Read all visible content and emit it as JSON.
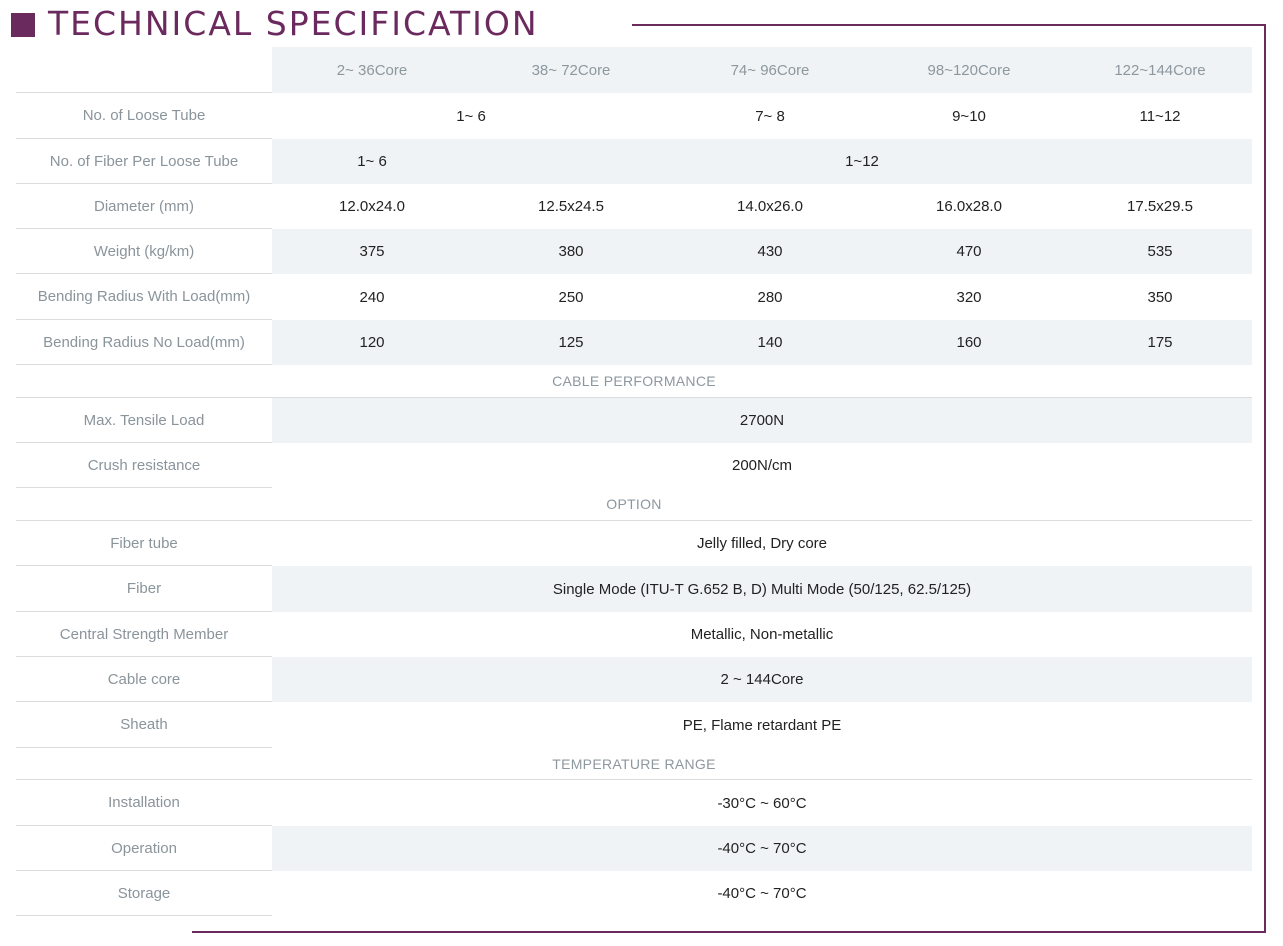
{
  "title": "TECHNICAL SPECIFICATION",
  "brand_color": "#6b2a5e",
  "columns": [
    "2~ 36Core",
    "38~ 72Core",
    "74~ 96Core",
    "98~120Core",
    "122~144Core"
  ],
  "rows": {
    "loose_tube": {
      "label": "No. of Loose Tube",
      "v12": "1~ 6",
      "v3": "7~ 8",
      "v4": "9~10",
      "v5": "11~12"
    },
    "fiber_per_tube": {
      "label": "No. of Fiber Per Loose Tube",
      "v1": "1~ 6",
      "v25": "1~12"
    },
    "diameter": {
      "label": "Diameter (mm)",
      "values": [
        "12.0x24.0",
        "12.5x24.5",
        "14.0x26.0",
        "16.0x28.0",
        "17.5x29.5"
      ]
    },
    "weight": {
      "label": "Weight (kg/km)",
      "values": [
        "375",
        "380",
        "430",
        "470",
        "535"
      ]
    },
    "bend_load": {
      "label": "Bending Radius With Load(mm)",
      "values": [
        "240",
        "250",
        "280",
        "320",
        "350"
      ]
    },
    "bend_noload": {
      "label": "Bending Radius No Load(mm)",
      "values": [
        "120",
        "125",
        "140",
        "160",
        "175"
      ]
    }
  },
  "sections": {
    "performance": "CABLE PERFORMANCE",
    "option": "OPTION",
    "temperature": "TEMPERATURE RANGE"
  },
  "performance": {
    "tensile": {
      "label": "Max. Tensile Load",
      "value": "2700N"
    },
    "crush": {
      "label": "Crush resistance",
      "value": "200N/cm"
    }
  },
  "option": {
    "fiber_tube": {
      "label": "Fiber tube",
      "value": "Jelly filled, Dry core"
    },
    "fiber": {
      "label": "Fiber",
      "value": "Single Mode (ITU-T G.652 B, D) Multi Mode (50/125, 62.5/125)"
    },
    "strength": {
      "label": "Central Strength Member",
      "value": "Metallic, Non-metallic"
    },
    "core": {
      "label": "Cable core",
      "value": "2 ~ 144Core"
    },
    "sheath": {
      "label": "Sheath",
      "value": "PE, Flame retardant PE"
    }
  },
  "temperature": {
    "installation": {
      "label": "Installation",
      "value": "-30°C ~ 60°C"
    },
    "operation": {
      "label": "Operation",
      "value": "-40°C ~ 70°C"
    },
    "storage": {
      "label": "Storage",
      "value": "-40°C ~ 70°C"
    }
  }
}
